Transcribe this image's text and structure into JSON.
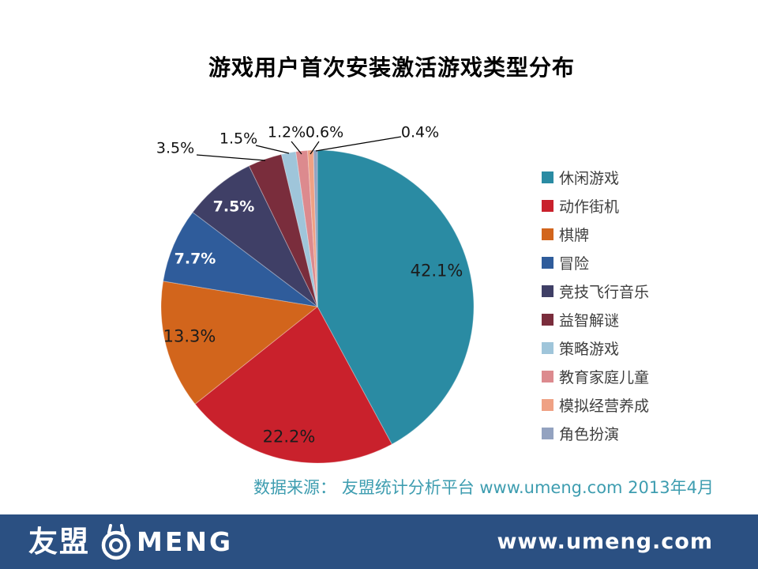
{
  "slide": {
    "title": "游戏用户首次安装激活游戏类型分布",
    "source_note": "数据来源： 友盟统计分析平台 www.umeng.com 2013年4月",
    "footer": {
      "logo_cn": "友盟",
      "logo_en": "MENG",
      "website": "www.umeng.com"
    }
  },
  "chart_data": {
    "type": "pie",
    "title": "游戏用户首次安装激活游戏类型分布",
    "direction": "clockwise",
    "start_angle_deg": 0,
    "legend_position": "right",
    "categories": [
      "休闲游戏",
      "动作街机",
      "棋牌",
      "冒险",
      "竞技飞行音乐",
      "益智解谜",
      "策略游戏",
      "教育家庭儿童",
      "模拟经营养成",
      "角色扮演"
    ],
    "values": [
      42.1,
      22.2,
      13.3,
      7.7,
      7.5,
      3.5,
      1.5,
      1.2,
      0.6,
      0.4
    ],
    "labels": [
      "42.1%",
      "22.2%",
      "13.3%",
      "7.7%",
      "7.5%",
      "3.5%",
      "1.5%",
      "1.2%",
      "0.6%",
      "0.4%"
    ],
    "colors": [
      "#2a8ba3",
      "#c9212c",
      "#d2651c",
      "#2f5c9b",
      "#3f3f66",
      "#7a2d3c",
      "#9fc5da",
      "#dc8a8e",
      "#efa184",
      "#93a2c0"
    ],
    "source": "数据来源： 友盟统计分析平台 www.umeng.com 2013年4月"
  },
  "theme": {
    "footer_bg": "#2b5082",
    "source_text_color": "#3e9db0",
    "legend_text_color": "#3f3f3f",
    "leader_line_color": "#000000"
  }
}
